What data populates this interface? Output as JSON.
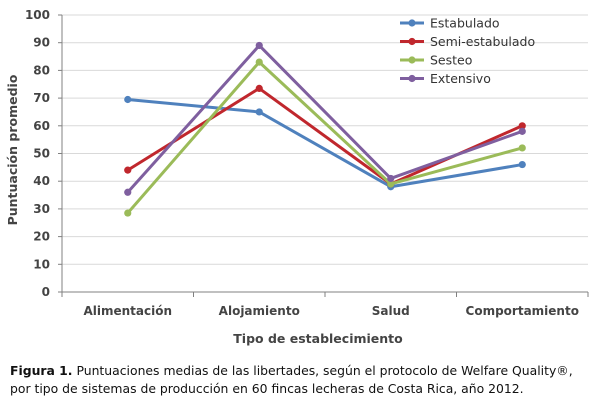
{
  "chart_data": {
    "type": "line",
    "categories": [
      "Alimentación",
      "Alojamiento",
      "Salud",
      "Comportamiento"
    ],
    "series": [
      {
        "name": "Estabulado",
        "color": "#4f81bd",
        "values": [
          69.5,
          65,
          38,
          46
        ]
      },
      {
        "name": "Semi-estabulado",
        "color": "#c0272d",
        "values": [
          44,
          73.5,
          39,
          60
        ]
      },
      {
        "name": "Sesteo",
        "color": "#9bbb59",
        "values": [
          28.5,
          83,
          39,
          52
        ]
      },
      {
        "name": "Extensivo",
        "color": "#7f5f9f",
        "values": [
          36,
          89,
          41,
          58
        ]
      }
    ],
    "xlabel": "Tipo de establecimiento",
    "ylabel": "Puntuación promedio",
    "ylim": [
      0,
      100
    ],
    "yticks": [
      0,
      10,
      20,
      30,
      40,
      50,
      60,
      70,
      80,
      90,
      100
    ],
    "grid": true,
    "legend": "top-right",
    "axis_color": "#808080",
    "grid_color": "#d9d9d9"
  },
  "caption": {
    "label": "Figura 1.",
    "text": " Puntuaciones medias de las libertades, según el protocolo de Welfare Quality®, por tipo de sistemas de producción en 60 fincas lecheras de Costa Rica, año 2012."
  }
}
